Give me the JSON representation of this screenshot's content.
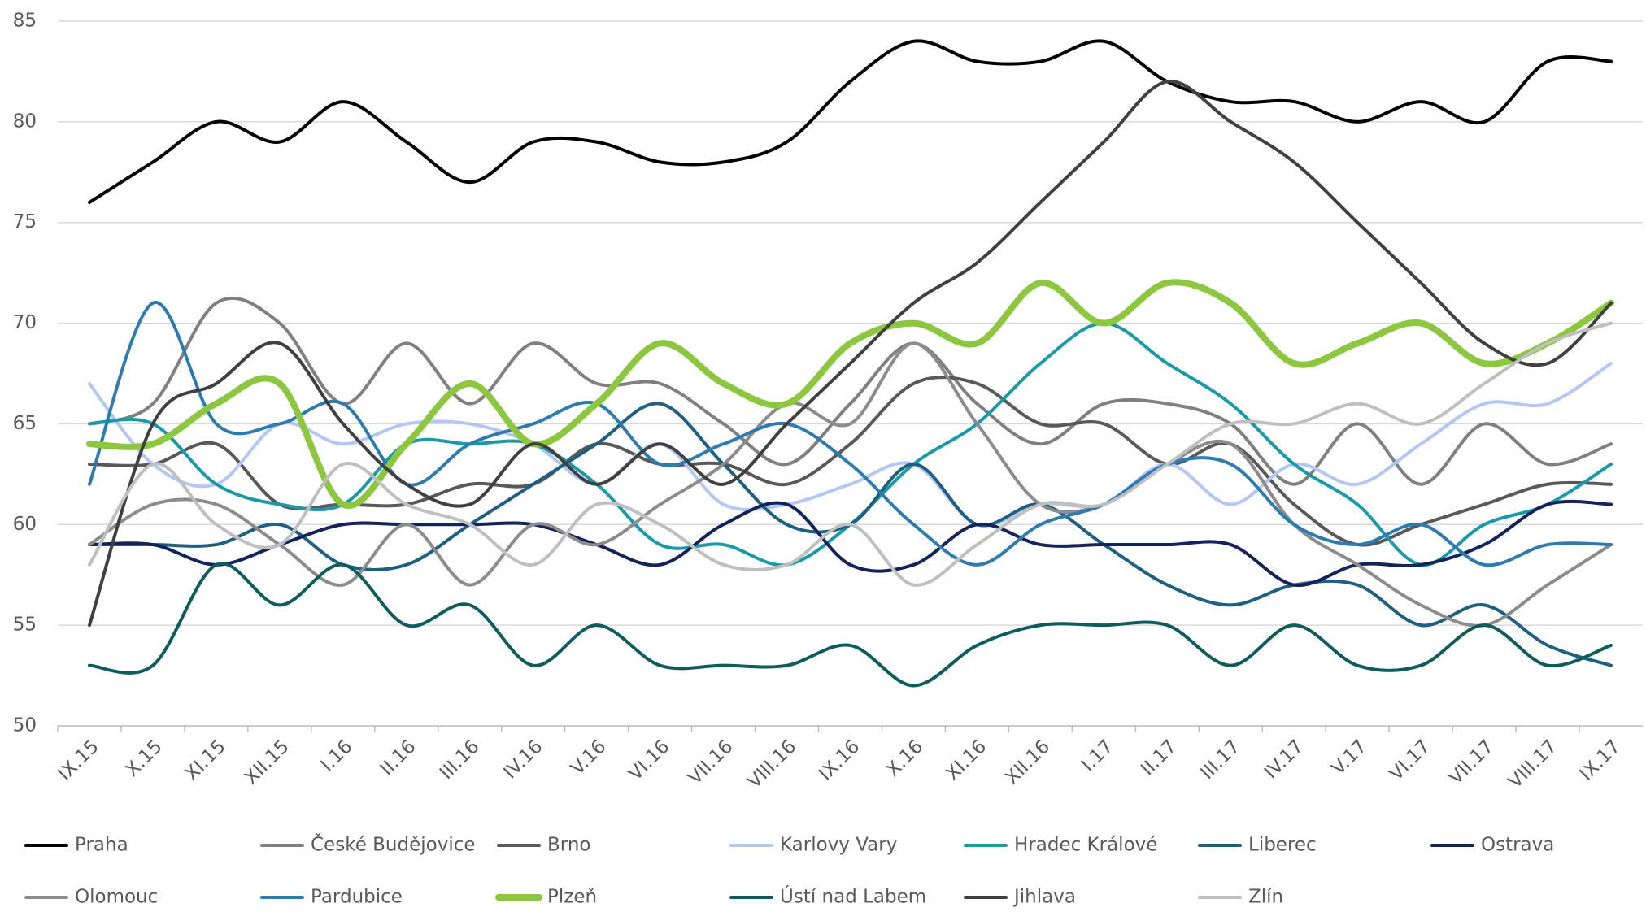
{
  "chart_data": {
    "type": "line",
    "smooth": true,
    "grid": true,
    "categories": [
      "IX.15",
      "X.15",
      "XI.15",
      "XII.15",
      "I.16",
      "II.16",
      "III.16",
      "IV.16",
      "V.16",
      "VI.16",
      "VII.16",
      "VIII.16",
      "IX.16",
      "X.16",
      "XI.16",
      "XII.16",
      "I.17",
      "II.17",
      "III.17",
      "IV.17",
      "V.17",
      "VI.17",
      "VII.17",
      "VIII.17",
      "IX.17"
    ],
    "ylim": [
      50,
      85
    ],
    "yticks": [
      50,
      55,
      60,
      65,
      70,
      75,
      80,
      85
    ],
    "series": [
      {
        "name": "Praha",
        "color": "#000000",
        "line_width": 4,
        "values": [
          76,
          78,
          80,
          79,
          81,
          79,
          77,
          79,
          79,
          78,
          78,
          79,
          82,
          84,
          83,
          83,
          84,
          82,
          81,
          81,
          80,
          81,
          80,
          83,
          83
        ]
      },
      {
        "name": "České Budějovice",
        "color": "#808080",
        "line_width": 4,
        "values": [
          65,
          66,
          71,
          70,
          66,
          69,
          66,
          69,
          67,
          67,
          65,
          63,
          66,
          69,
          66,
          64,
          66,
          66,
          65,
          62,
          65,
          62,
          65,
          63,
          64
        ]
      },
      {
        "name": "Brno",
        "color": "#595959",
        "line_width": 4,
        "values": [
          63,
          63,
          64,
          61,
          61,
          61,
          62,
          62,
          64,
          63,
          63,
          62,
          64,
          67,
          67,
          65,
          65,
          63,
          64,
          61,
          59,
          60,
          61,
          62,
          62
        ]
      },
      {
        "name": "Karlovy Vary",
        "color": "#b4c7f4",
        "line_width": 4,
        "values": [
          67,
          63,
          62,
          65,
          64,
          65,
          65,
          64,
          62,
          64,
          61,
          61,
          62,
          63,
          60,
          61,
          61,
          63,
          61,
          63,
          62,
          64,
          66,
          66,
          68
        ]
      },
      {
        "name": "Hradec Králové",
        "color": "#1a9aa8",
        "line_width": 4,
        "values": [
          65,
          65,
          62,
          61,
          61,
          64,
          64,
          64,
          62,
          59,
          59,
          58,
          60,
          63,
          65,
          68,
          70,
          68,
          66,
          63,
          61,
          58,
          60,
          61,
          63
        ]
      },
      {
        "name": "Liberec",
        "color": "#1f5f82",
        "line_width": 4,
        "values": [
          59,
          59,
          59,
          60,
          58,
          58,
          60,
          62,
          64,
          66,
          63,
          60,
          60,
          63,
          60,
          61,
          59,
          57,
          56,
          57,
          57,
          55,
          56,
          54,
          53
        ]
      },
      {
        "name": "Ostrava",
        "color": "#14235c",
        "line_width": 4,
        "values": [
          59,
          59,
          58,
          59,
          60,
          60,
          60,
          60,
          59,
          58,
          60,
          61,
          58,
          58,
          60,
          59,
          59,
          59,
          59,
          57,
          58,
          58,
          59,
          61,
          61
        ]
      },
      {
        "name": "Olomouc",
        "color": "#8c8c8c",
        "line_width": 4,
        "values": [
          59,
          61,
          61,
          59,
          57,
          60,
          57,
          60,
          59,
          61,
          63,
          66,
          65,
          69,
          65,
          61,
          61,
          63,
          64,
          60,
          58,
          56,
          55,
          57,
          59
        ]
      },
      {
        "name": "Pardubice",
        "color": "#2e7bb0",
        "line_width": 4,
        "values": [
          62,
          71,
          65,
          65,
          66,
          62,
          64,
          65,
          66,
          63,
          64,
          65,
          63,
          60,
          58,
          60,
          61,
          63,
          63,
          60,
          59,
          60,
          58,
          59,
          59
        ]
      },
      {
        "name": "Plzeň",
        "color": "#8dc63f",
        "line_width": 8,
        "values": [
          64,
          64,
          66,
          67,
          61,
          64,
          67,
          64,
          66,
          69,
          67,
          66,
          69,
          70,
          69,
          72,
          70,
          72,
          71,
          68,
          69,
          70,
          68,
          69,
          71
        ]
      },
      {
        "name": "Ústí nad Labem",
        "color": "#0f5c5c",
        "line_width": 4,
        "values": [
          53,
          53,
          58,
          56,
          58,
          55,
          56,
          53,
          55,
          53,
          53,
          53,
          54,
          52,
          54,
          55,
          55,
          55,
          53,
          55,
          53,
          53,
          55,
          53,
          54
        ]
      },
      {
        "name": "Jihlava",
        "color": "#404040",
        "line_width": 4,
        "values": [
          55,
          65,
          67,
          69,
          65,
          62,
          61,
          64,
          62,
          64,
          62,
          65,
          68,
          71,
          73,
          76,
          79,
          82,
          80,
          78,
          75,
          72,
          69,
          68,
          71
        ]
      },
      {
        "name": "Zlín",
        "color": "#bfbfbf",
        "line_width": 4,
        "values": [
          58,
          63,
          60,
          59,
          63,
          61,
          60,
          58,
          61,
          60,
          58,
          58,
          60,
          57,
          59,
          61,
          61,
          63,
          65,
          65,
          66,
          65,
          67,
          69,
          70
        ]
      }
    ]
  }
}
